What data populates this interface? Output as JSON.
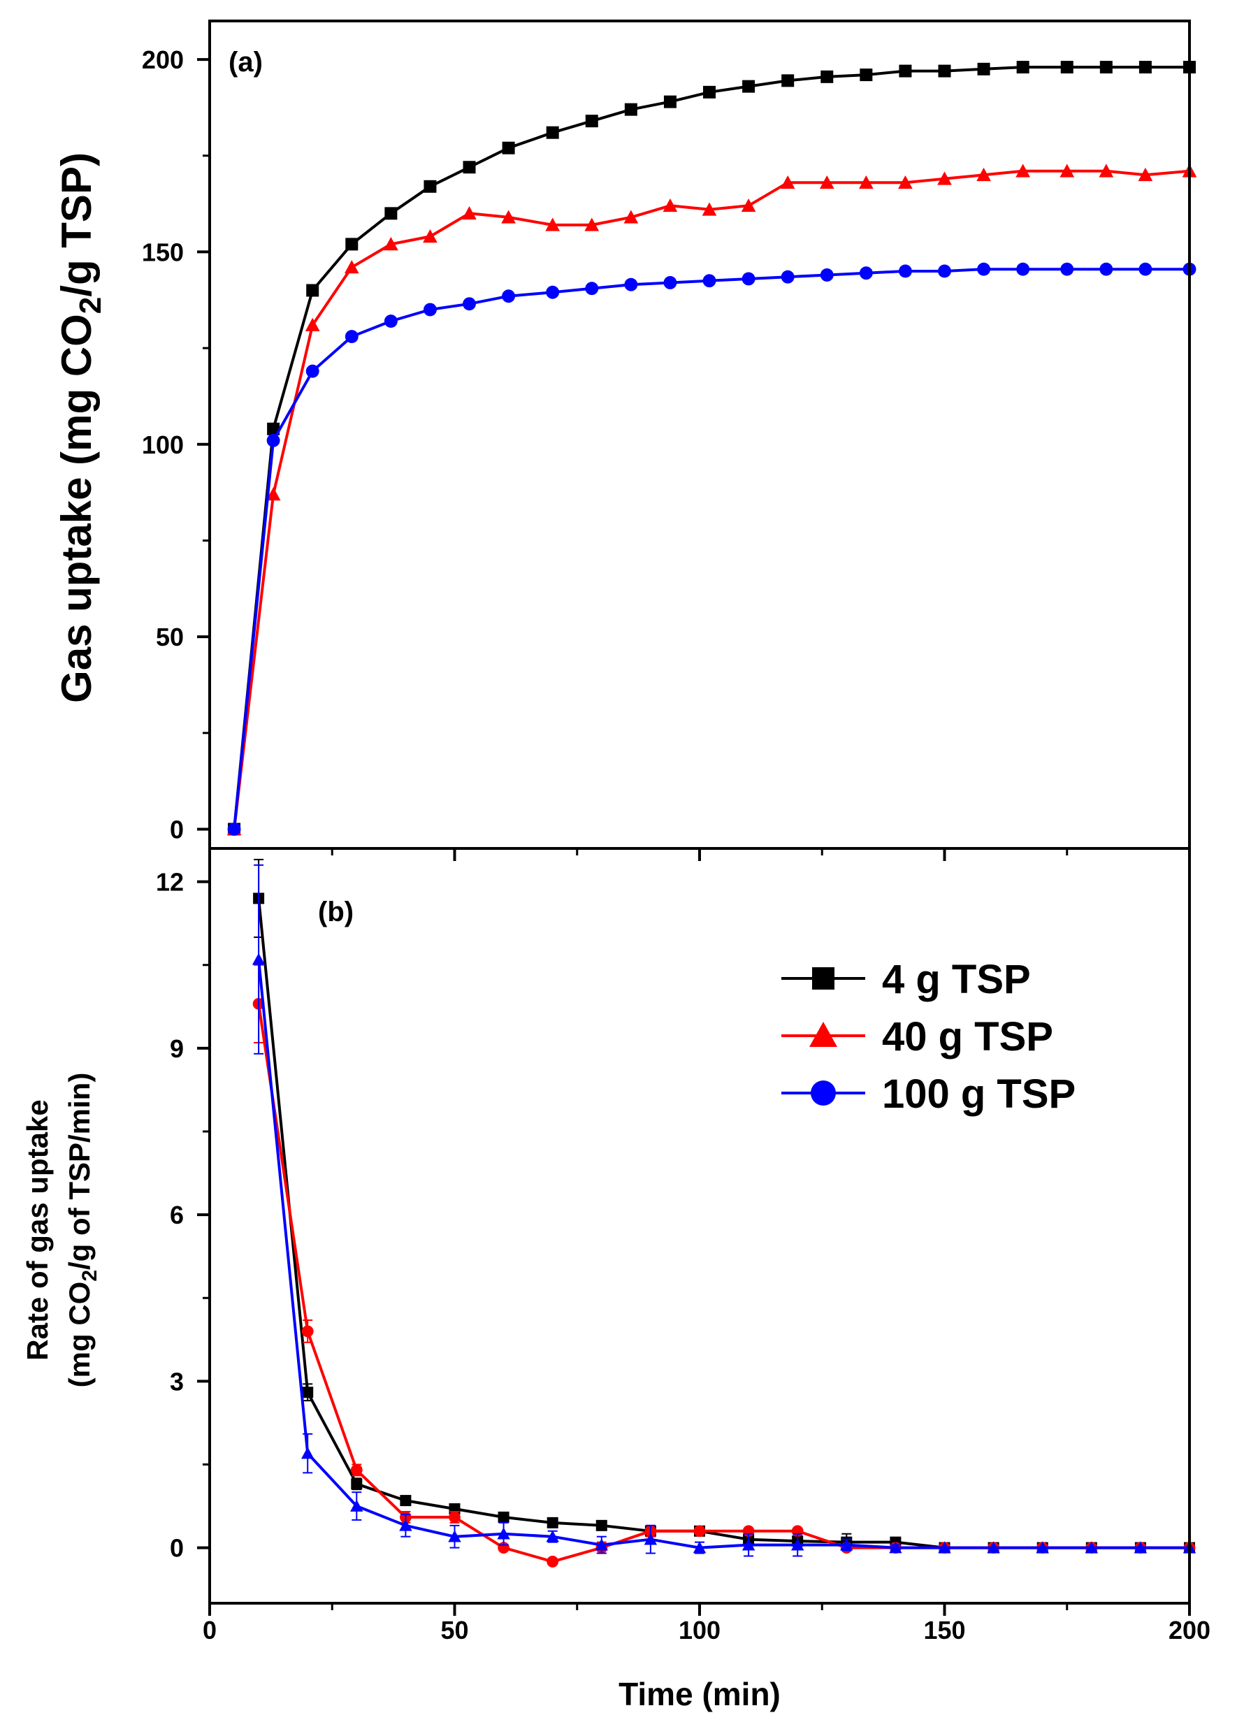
{
  "chart_data": [
    {
      "type": "line",
      "panel_label": "(a)",
      "title": "",
      "xlabel": "Time (min)",
      "ylabel": {
        "pre": "Gas uptake (mg CO",
        "sub": "2",
        "post": "/g TSP)"
      },
      "xlim": [
        0,
        200
      ],
      "ylim": [
        -5,
        210
      ],
      "x_ticks": [
        0,
        50,
        100,
        150,
        200
      ],
      "y_ticks": [
        0,
        50,
        100,
        150,
        200
      ],
      "tick_labels": {
        "y": [
          "0",
          "50",
          "100",
          "150",
          "200"
        ]
      },
      "grid": false,
      "series": [
        {
          "name": "4 g TSP",
          "color": "#000000",
          "marker": "square",
          "x": [
            5,
            13,
            21,
            29,
            37,
            45,
            53,
            61,
            70,
            78,
            86,
            94,
            102,
            110,
            118,
            126,
            134,
            142,
            150,
            158,
            166,
            175,
            183,
            191,
            200
          ],
          "y": [
            0,
            104,
            140,
            152,
            160,
            167,
            172,
            177,
            181,
            184,
            187,
            189,
            191.5,
            193,
            194.5,
            195.5,
            196,
            197,
            197,
            197.5,
            198,
            198,
            198,
            198,
            198
          ]
        },
        {
          "name": "40 g TSP",
          "color": "#ff0000",
          "marker": "triangle",
          "x": [
            5,
            13,
            21,
            29,
            37,
            45,
            53,
            61,
            70,
            78,
            86,
            94,
            102,
            110,
            118,
            126,
            134,
            142,
            150,
            158,
            166,
            175,
            183,
            191,
            200
          ],
          "y": [
            0,
            87,
            131,
            146,
            152,
            154,
            160,
            159,
            157,
            157,
            159,
            162,
            161,
            162,
            168,
            168,
            168,
            168,
            169,
            170,
            171,
            171,
            171,
            170,
            171
          ]
        },
        {
          "name": "100 g TSP",
          "color": "#0000ff",
          "marker": "circle",
          "x": [
            5,
            13,
            21,
            29,
            37,
            45,
            53,
            61,
            70,
            78,
            86,
            94,
            102,
            110,
            118,
            126,
            134,
            142,
            150,
            158,
            166,
            175,
            183,
            191,
            200
          ],
          "y": [
            0,
            101,
            119,
            128,
            132,
            135,
            136.5,
            138.5,
            139.5,
            140.5,
            141.5,
            142,
            142.5,
            143,
            143.5,
            144,
            144.5,
            145,
            145,
            145.5,
            145.5,
            145.5,
            145.5,
            145.5,
            145.5
          ]
        }
      ]
    },
    {
      "type": "line",
      "panel_label": "(b)",
      "title": "",
      "xlabel": "Time (min)",
      "ylabel_line1": "Rate of gas uptake",
      "ylabel_line2": {
        "pre": "(mg CO",
        "sub": "2",
        "post": "/g of TSP/min)"
      },
      "xlim": [
        0,
        200
      ],
      "ylim": [
        -1,
        12.6
      ],
      "x_ticks": [
        0,
        50,
        100,
        150,
        200
      ],
      "y_ticks": [
        0,
        3,
        6,
        9,
        12
      ],
      "tick_labels": {
        "x": [
          "0",
          "50",
          "100",
          "150",
          "200"
        ],
        "y": [
          "0",
          "3",
          "6",
          "9",
          "12"
        ]
      },
      "grid": false,
      "legend": {
        "location": "top-right",
        "entries": [
          "4 g TSP",
          "40 g TSP",
          "100 g TSP"
        ]
      },
      "series": [
        {
          "name": "4 g TSP",
          "color": "#000000",
          "marker": "square",
          "x": [
            10,
            20,
            30,
            40,
            50,
            60,
            70,
            80,
            90,
            100,
            110,
            120,
            130,
            140,
            150,
            160,
            170,
            180,
            190,
            200
          ],
          "y": [
            11.7,
            2.8,
            1.15,
            0.85,
            0.7,
            0.55,
            0.45,
            0.4,
            0.3,
            0.3,
            0.15,
            0.12,
            0.1,
            0.1,
            0,
            0,
            0,
            0,
            0,
            0
          ],
          "err": [
            0.7,
            0.15,
            0.1,
            0.05,
            0.05,
            0.05,
            0.05,
            0.05,
            0.05,
            0.05,
            0.05,
            0.05,
            0.15,
            0.05,
            0,
            0,
            0,
            0,
            0,
            0
          ]
        },
        {
          "name": "40 g TSP",
          "color": "#ff0000",
          "marker": "circle",
          "x": [
            10,
            20,
            30,
            40,
            50,
            60,
            70,
            80,
            90,
            100,
            110,
            120,
            130,
            140,
            150,
            160,
            170,
            180,
            190,
            200
          ],
          "y": [
            9.8,
            3.9,
            1.4,
            0.55,
            0.55,
            0,
            -0.25,
            0,
            0.3,
            0.3,
            0.3,
            0.3,
            0,
            0,
            0,
            0,
            0,
            0,
            0,
            0
          ],
          "err": [
            0.7,
            0.2,
            0.1,
            0.1,
            0.1,
            0.05,
            0.05,
            0.1,
            0.1,
            0.05,
            0.05,
            0.05,
            0.05,
            0,
            0,
            0,
            0,
            0,
            0,
            0
          ]
        },
        {
          "name": "100 g TSP",
          "color": "#0000ff",
          "marker": "triangle",
          "x": [
            10,
            20,
            30,
            40,
            50,
            60,
            70,
            80,
            90,
            100,
            110,
            120,
            130,
            140,
            150,
            160,
            170,
            180,
            190,
            200
          ],
          "y": [
            10.6,
            1.7,
            0.75,
            0.4,
            0.2,
            0.25,
            0.2,
            0.05,
            0.15,
            0,
            0.05,
            0.05,
            0.05,
            0,
            0,
            0,
            0,
            0,
            0,
            0
          ],
          "err": [
            1.7,
            0.35,
            0.25,
            0.2,
            0.2,
            0.2,
            0.1,
            0.15,
            0.25,
            0.1,
            0.2,
            0.2,
            0.1,
            0.05,
            0,
            0,
            0,
            0,
            0,
            0
          ]
        }
      ]
    }
  ]
}
